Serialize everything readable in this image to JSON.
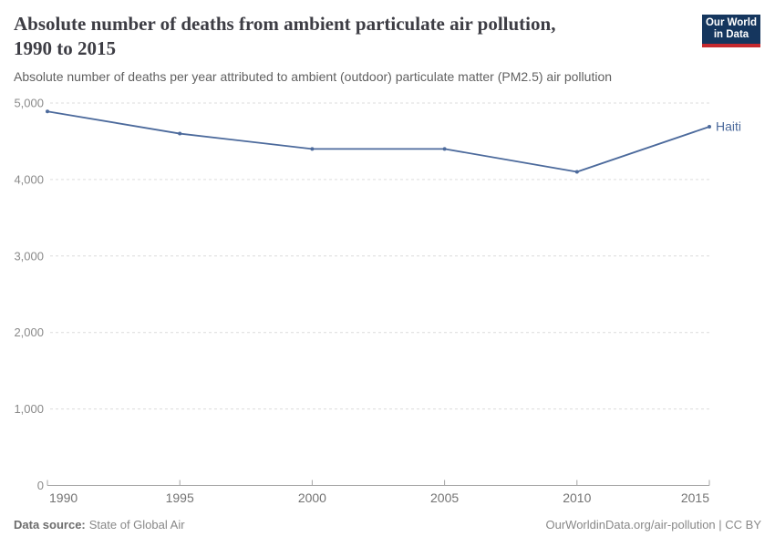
{
  "header": {
    "title_line1": "Absolute number of deaths from ambient particulate air pollution,",
    "title_line2": "1990 to 2015",
    "subtitle": "Absolute number of deaths per year attributed to ambient (outdoor) particulate matter (PM2.5) air pollution"
  },
  "logo": {
    "line1": "Our World",
    "line2": "in Data",
    "bg_color": "#15365E",
    "accent_color": "#C5292E"
  },
  "chart_data": {
    "type": "line",
    "title": "Absolute number of deaths from ambient particulate air pollution, 1990 to 2015",
    "x": [
      1990,
      1995,
      2000,
      2005,
      2010,
      2015
    ],
    "series": [
      {
        "name": "Haiti",
        "color": "#4C6A9C",
        "values": [
          4890,
          4600,
          4400,
          4400,
          4100,
          4690
        ]
      }
    ],
    "x_range": [
      1990,
      2015
    ],
    "y_range": [
      0,
      5000
    ],
    "x_ticks": [
      {
        "value": 1990,
        "label": "1990"
      },
      {
        "value": 1995,
        "label": "1995"
      },
      {
        "value": 2000,
        "label": "2000"
      },
      {
        "value": 2005,
        "label": "2005"
      },
      {
        "value": 2010,
        "label": "2010"
      },
      {
        "value": 2015,
        "label": "2015"
      }
    ],
    "y_ticks": [
      {
        "value": 0,
        "label": "0"
      },
      {
        "value": 1000,
        "label": "1,000"
      },
      {
        "value": 2000,
        "label": "2,000"
      },
      {
        "value": 3000,
        "label": "3,000"
      },
      {
        "value": 4000,
        "label": "4,000"
      },
      {
        "value": 5000,
        "label": "5,000"
      }
    ],
    "grid": "horizontal-dashed",
    "legend_position": "line-end-label",
    "colors": {
      "gridline": "#dcdcdc",
      "axis": "#a5a5a5",
      "y_tick_label": "#8a8a8a",
      "x_tick_label": "#737373"
    }
  },
  "footer": {
    "data_source_label": "Data source:",
    "data_source_value": "State of Global Air",
    "link_text": "OurWorldinData.org/air-pollution | CC BY"
  }
}
